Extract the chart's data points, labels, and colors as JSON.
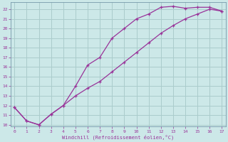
{
  "xlabel": "Windchill (Refroidissement éolien,°C)",
  "bg_color": "#cce8e8",
  "grid_color": "#aacccc",
  "line_color": "#993399",
  "line1_x": [
    0,
    1,
    2,
    3,
    4,
    5,
    6,
    7,
    8,
    9,
    10,
    11,
    12,
    13,
    14,
    15,
    16,
    17
  ],
  "line1_y": [
    11.8,
    10.4,
    10.0,
    11.1,
    12.0,
    14.0,
    16.2,
    17.0,
    19.0,
    20.0,
    21.0,
    21.5,
    22.2,
    22.3,
    22.1,
    22.2,
    22.2,
    21.8
  ],
  "line2_x": [
    0,
    1,
    2,
    3,
    4,
    5,
    6,
    7,
    8,
    9,
    10,
    11,
    12,
    13,
    14,
    15,
    16,
    17
  ],
  "line2_y": [
    11.8,
    10.4,
    10.0,
    11.1,
    12.0,
    13.0,
    13.8,
    14.5,
    15.5,
    16.5,
    17.5,
    18.5,
    19.5,
    20.3,
    21.0,
    21.5,
    22.0,
    21.8
  ],
  "xlim": [
    -0.3,
    17.3
  ],
  "ylim": [
    9.8,
    22.7
  ],
  "xticks": [
    0,
    1,
    2,
    3,
    4,
    5,
    6,
    7,
    8,
    9,
    10,
    11,
    12,
    13,
    14,
    15,
    16,
    17
  ],
  "yticks": [
    10,
    11,
    12,
    13,
    14,
    15,
    16,
    17,
    18,
    19,
    20,
    21,
    22
  ]
}
